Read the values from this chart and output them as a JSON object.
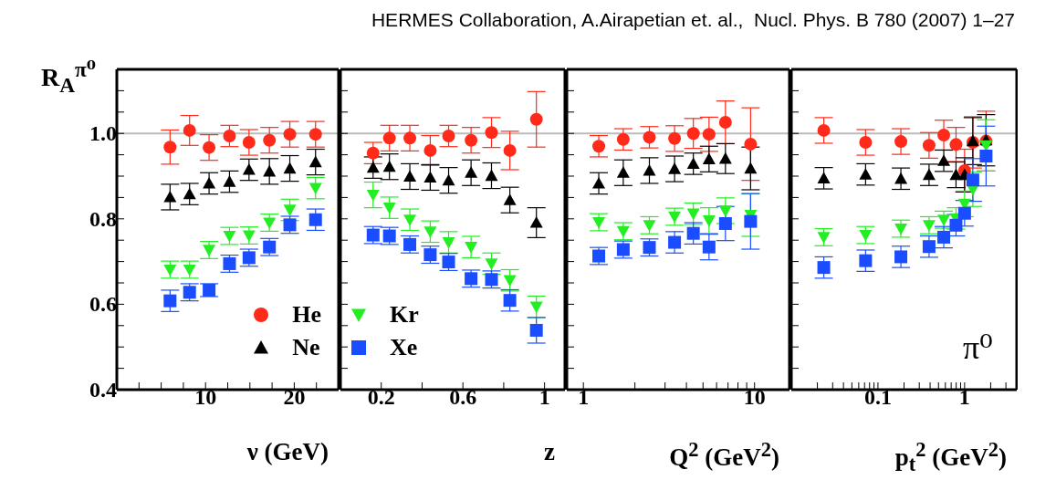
{
  "chart_data": [
    {
      "type": "scatter",
      "ylabel": "R$_{A}$$^{π⁰}$",
      "xlabel": "ν (GeV)",
      "annotations": [
        "HERMES Collaboration, A.Airapetian et. al.,  Nucl. Phys. B 780 (2007) 1–27"
      ],
      "legend": "bottom right",
      "tick_labels": "xy",
      "xlim": [
        0,
        25
      ],
      "xticks": [
        {
          "value": 2.5,
          "label": null
        },
        {
          "value": 5,
          "label": null
        },
        {
          "value": 7.5,
          "label": null
        },
        10,
        {
          "value": 12.5,
          "label": null
        },
        {
          "value": 15,
          "label": null
        },
        {
          "value": 17.5,
          "label": null
        },
        20,
        {
          "value": 22.5,
          "label": null
        }
      ],
      "ylim": [
        0.4,
        1.15
      ],
      "yticks": [
        0.4,
        {
          "value": 0.45,
          "label": null
        },
        {
          "value": 0.5,
          "label": null
        },
        {
          "value": 0.55,
          "label": null
        },
        0.6,
        {
          "value": 0.65,
          "label": null
        },
        {
          "value": 0.7,
          "label": null
        },
        {
          "value": 0.75,
          "label": null
        },
        0.8,
        {
          "value": 0.85,
          "label": null
        },
        {
          "value": 0.9,
          "label": null
        },
        {
          "value": 0.95,
          "label": null
        },
        {
          "value": 1,
          "label": "1.0"
        },
        {
          "value": 1.05,
          "label": null
        },
        {
          "value": 1.1,
          "label": null
        }
      ],
      "ref_lines": [
        {
          "axis": "y",
          "value": 1,
          "color": "#bbbbbb"
        }
      ],
      "x": [
        6,
        8.2,
        10.4,
        12.7,
        14.9,
        17.2,
        19.5,
        22.4
      ],
      "series": [
        {
          "name": "He",
          "color": "#ff2a1a",
          "marker": "circle",
          "values": [
            0.968,
            1.007,
            0.967,
            0.994,
            0.979,
            0.984,
            0.998,
            0.998
          ],
          "errors": [
            0.04,
            0.035,
            0.03,
            0.025,
            0.03,
            0.03,
            0.03,
            0.03
          ]
        },
        {
          "name": "Ne",
          "color": "#000000",
          "marker": "triangle",
          "values": [
            0.851,
            0.858,
            0.883,
            0.887,
            0.915,
            0.911,
            0.918,
            0.933
          ],
          "errors": [
            0.03,
            0.025,
            0.025,
            0.025,
            0.025,
            0.03,
            0.03,
            0.03
          ]
        },
        {
          "color": "#22ee22",
          "marker": "triangle-down",
          "values": [
            0.681,
            0.681,
            0.727,
            0.76,
            0.761,
            0.791,
            0.821,
            0.872
          ],
          "errors": [
            0.02,
            0.02,
            0.02,
            0.02,
            0.02,
            0.02,
            0.025,
            0.025
          ]
        },
        {
          "color": "#1a4dff",
          "marker": "square",
          "values": [
            0.608,
            0.628,
            0.633,
            0.695,
            0.709,
            0.734,
            0.786,
            0.798
          ],
          "errors": [
            0.025,
            0.02,
            0.015,
            0.02,
            0.02,
            0.02,
            0.02,
            0.025
          ]
        }
      ]
    },
    {
      "type": "scatter",
      "xlabel": "z",
      "legend": "bottom left",
      "tick_labels": "x",
      "xlim": [
        0,
        1.1
      ],
      "xticks": [
        0.2,
        {
          "value": 0.4,
          "label": null
        },
        0.6,
        {
          "value": 0.8,
          "label": null
        },
        1
      ],
      "ylim": [
        0.4,
        1.15
      ],
      "yticks": [
        0.4,
        {
          "value": 0.45,
          "label": null
        },
        {
          "value": 0.5,
          "label": null
        },
        {
          "value": 0.55,
          "label": null
        },
        0.6,
        {
          "value": 0.65,
          "label": null
        },
        {
          "value": 0.7,
          "label": null
        },
        {
          "value": 0.75,
          "label": null
        },
        0.8,
        {
          "value": 0.85,
          "label": null
        },
        {
          "value": 0.9,
          "label": null
        },
        {
          "value": 0.95,
          "label": null
        },
        1,
        {
          "value": 1.05,
          "label": null
        },
        {
          "value": 1.1,
          "label": null
        }
      ],
      "ref_lines": [
        {
          "axis": "y",
          "value": 1,
          "color": "#bbbbbb"
        }
      ],
      "x": [
        0.16,
        0.24,
        0.34,
        0.44,
        0.53,
        0.64,
        0.74,
        0.83,
        0.96
      ],
      "series": [
        {
          "color": "#ff2a1a",
          "marker": "circle",
          "values": [
            0.954,
            0.989,
            0.989,
            0.96,
            0.994,
            0.984,
            1.002,
            0.96,
            1.033
          ],
          "errors": [
            0.025,
            0.03,
            0.03,
            0.035,
            0.025,
            0.03,
            0.035,
            0.045,
            0.065
          ]
        },
        {
          "color": "#000000",
          "marker": "triangle",
          "values": [
            0.92,
            0.922,
            0.899,
            0.897,
            0.89,
            0.908,
            0.901,
            0.844,
            0.791
          ],
          "errors": [
            0.025,
            0.03,
            0.03,
            0.03,
            0.03,
            0.03,
            0.03,
            0.03,
            0.035
          ]
        },
        {
          "name": "Kr",
          "color": "#22ee22",
          "marker": "triangle-down",
          "values": [
            0.856,
            0.826,
            0.798,
            0.77,
            0.745,
            0.734,
            0.695,
            0.656,
            0.594
          ],
          "errors": [
            0.03,
            0.025,
            0.025,
            0.025,
            0.025,
            0.025,
            0.025,
            0.025,
            0.025
          ]
        },
        {
          "name": "Xe",
          "color": "#1a4dff",
          "marker": "square",
          "values": [
            0.762,
            0.76,
            0.74,
            0.716,
            0.699,
            0.66,
            0.658,
            0.609,
            0.539
          ],
          "errors": [
            0.02,
            0.02,
            0.02,
            0.02,
            0.02,
            0.02,
            0.02,
            0.025,
            0.03
          ]
        }
      ]
    },
    {
      "type": "scatter",
      "xlabel": "Q$^{2}$ (GeV$^{2}$)",
      "log": "x",
      "tick_labels": "x",
      "xlim": [
        0.8,
        16
      ],
      "xticks": [
        1,
        {
          "value": 2,
          "label": null
        },
        {
          "value": 3,
          "label": null
        },
        {
          "value": 4,
          "label": null
        },
        {
          "value": 5,
          "label": null
        },
        {
          "value": 6,
          "label": null
        },
        {
          "value": 7,
          "label": null
        },
        {
          "value": 8,
          "label": null
        },
        {
          "value": 9,
          "label": null
        },
        10
      ],
      "ylim": [
        0.4,
        1.15
      ],
      "yticks": [
        0.4,
        {
          "value": 0.45,
          "label": null
        },
        {
          "value": 0.5,
          "label": null
        },
        {
          "value": 0.55,
          "label": null
        },
        0.6,
        {
          "value": 0.65,
          "label": null
        },
        {
          "value": 0.7,
          "label": null
        },
        {
          "value": 0.75,
          "label": null
        },
        0.8,
        {
          "value": 0.85,
          "label": null
        },
        {
          "value": 0.9,
          "label": null
        },
        {
          "value": 0.95,
          "label": null
        },
        1,
        {
          "value": 1.05,
          "label": null
        },
        {
          "value": 1.1,
          "label": null
        }
      ],
      "ref_lines": [
        {
          "axis": "y",
          "value": 1,
          "color": "#bbbbbb"
        }
      ],
      "x": [
        1.23,
        1.71,
        2.43,
        3.41,
        4.39,
        5.42,
        6.76,
        9.48
      ],
      "series": [
        {
          "color": "#ff2a1a",
          "marker": "circle",
          "values": [
            0.97,
            0.986,
            0.991,
            0.988,
            1,
            0.998,
            1.026,
            0.975
          ],
          "errors": [
            0.025,
            0.025,
            0.025,
            0.03,
            0.035,
            0.04,
            0.05,
            0.085
          ]
        },
        {
          "color": "#000000",
          "marker": "triangle",
          "values": [
            0.883,
            0.908,
            0.913,
            0.917,
            0.929,
            0.94,
            0.941,
            0.918
          ],
          "errors": [
            0.025,
            0.03,
            0.03,
            0.03,
            0.025,
            0.03,
            0.035,
            0.05
          ]
        },
        {
          "color": "#22ee22",
          "marker": "triangle-down",
          "values": [
            0.792,
            0.771,
            0.785,
            0.805,
            0.812,
            0.796,
            0.819,
            0.809
          ],
          "errors": [
            0.02,
            0.02,
            0.02,
            0.02,
            0.025,
            0.03,
            0.03,
            0.05
          ]
        },
        {
          "color": "#1a4dff",
          "marker": "square",
          "values": [
            0.713,
            0.728,
            0.733,
            0.745,
            0.766,
            0.734,
            0.789,
            0.794
          ],
          "errors": [
            0.02,
            0.02,
            0.02,
            0.025,
            0.025,
            0.03,
            0.04,
            0.065
          ]
        }
      ]
    },
    {
      "type": "scatter",
      "xlabel": "p$_{t}$$^{2}$ (GeV$^{2}$)",
      "log": "x",
      "tick_labels": "x",
      "annotations": [
        "π⁰"
      ],
      "xlim": [
        0.01,
        4
      ],
      "xticks": [
        {
          "value": 0.02,
          "label": null
        },
        {
          "value": 0.03,
          "label": null
        },
        {
          "value": 0.04,
          "label": null
        },
        {
          "value": 0.05,
          "label": null
        },
        {
          "value": 0.06,
          "label": null
        },
        {
          "value": 0.07,
          "label": null
        },
        {
          "value": 0.08,
          "label": null
        },
        {
          "value": 0.09,
          "label": null
        },
        0.1,
        {
          "value": 0.2,
          "label": null
        },
        {
          "value": 0.3,
          "label": null
        },
        {
          "value": 0.4,
          "label": null
        },
        {
          "value": 0.5,
          "label": null
        },
        {
          "value": 0.6,
          "label": null
        },
        {
          "value": 0.7,
          "label": null
        },
        {
          "value": 0.8,
          "label": null
        },
        {
          "value": 0.9,
          "label": null
        },
        1,
        {
          "value": 2,
          "label": null
        },
        {
          "value": 3,
          "label": null
        }
      ],
      "ylim": [
        0.4,
        1.15
      ],
      "yticks": [
        0.4,
        {
          "value": 0.45,
          "label": null
        },
        {
          "value": 0.5,
          "label": null
        },
        {
          "value": 0.55,
          "label": null
        },
        0.6,
        {
          "value": 0.65,
          "label": null
        },
        {
          "value": 0.7,
          "label": null
        },
        {
          "value": 0.75,
          "label": null
        },
        0.8,
        {
          "value": 0.85,
          "label": null
        },
        {
          "value": 0.9,
          "label": null
        },
        {
          "value": 0.95,
          "label": null
        },
        1,
        {
          "value": 1.05,
          "label": null
        },
        {
          "value": 1.1,
          "label": null
        }
      ],
      "ref_lines": [
        {
          "axis": "y",
          "value": 1,
          "color": "#bbbbbb"
        }
      ],
      "x": [
        0.0237,
        0.072,
        0.184,
        0.389,
        0.575,
        0.796,
        1,
        1.245,
        1.77
      ],
      "series": [
        {
          "color": "#ff2a1a",
          "marker": "circle",
          "values": [
            1.007,
            0.979,
            0.981,
            0.972,
            0.996,
            0.974,
            0.913,
            0.979,
            0.982
          ],
          "errors": [
            0.03,
            0.03,
            0.03,
            0.03,
            0.035,
            0.04,
            0.05,
            0.06,
            0.07
          ]
        },
        {
          "color": "#000000",
          "marker": "triangle",
          "values": [
            0.895,
            0.904,
            0.894,
            0.903,
            0.936,
            0.903,
            0.903,
            0.982,
            0.984
          ],
          "errors": [
            0.025,
            0.025,
            0.025,
            0.025,
            0.025,
            0.03,
            0.04,
            0.055,
            0.06
          ]
        },
        {
          "color": "#22ee22",
          "marker": "triangle-down",
          "values": [
            0.757,
            0.762,
            0.777,
            0.785,
            0.798,
            0.801,
            0.835,
            0.869,
            0.972
          ],
          "errors": [
            0.02,
            0.02,
            0.02,
            0.02,
            0.02,
            0.025,
            0.03,
            0.04,
            0.06
          ]
        },
        {
          "color": "#1a4dff",
          "marker": "square",
          "values": [
            0.686,
            0.702,
            0.711,
            0.735,
            0.757,
            0.785,
            0.813,
            0.891,
            0.947
          ],
          "errors": [
            0.025,
            0.025,
            0.025,
            0.025,
            0.025,
            0.025,
            0.03,
            0.05,
            0.07
          ]
        }
      ]
    }
  ]
}
